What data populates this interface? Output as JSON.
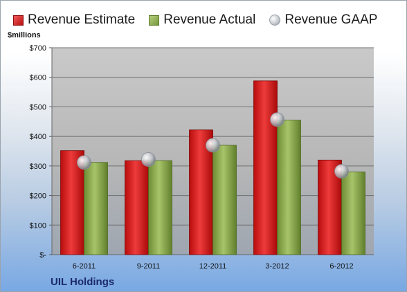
{
  "legend": {
    "estimate": "Revenue Estimate",
    "actual": "Revenue Actual",
    "gaap": "Revenue GAAP"
  },
  "units_label": "$millions",
  "company": "UIL Holdings",
  "colors": {
    "estimate": "#d42020",
    "actual": "#8fae4f",
    "gaap": "#c9ccd1"
  },
  "chart_data": {
    "type": "bar",
    "categories": [
      "6-2011",
      "9-2011",
      "12-2011",
      "3-2012",
      "6-2012"
    ],
    "series": [
      {
        "name": "Revenue Estimate",
        "values": [
          352,
          318,
          422,
          588,
          320
        ]
      },
      {
        "name": "Revenue Actual",
        "values": [
          312,
          318,
          370,
          455,
          280
        ]
      },
      {
        "name": "Revenue GAAP",
        "values": [
          312,
          322,
          370,
          457,
          282
        ]
      }
    ],
    "ylabel": "$millions",
    "ylim": [
      0,
      700
    ],
    "yticks": [
      0,
      100,
      200,
      300,
      400,
      500,
      600,
      700
    ],
    "ytick_labels": [
      "$-",
      "$100",
      "$200",
      "$300",
      "$400",
      "$500",
      "$600",
      "$700"
    ],
    "grid": true,
    "legend_position": "top"
  }
}
